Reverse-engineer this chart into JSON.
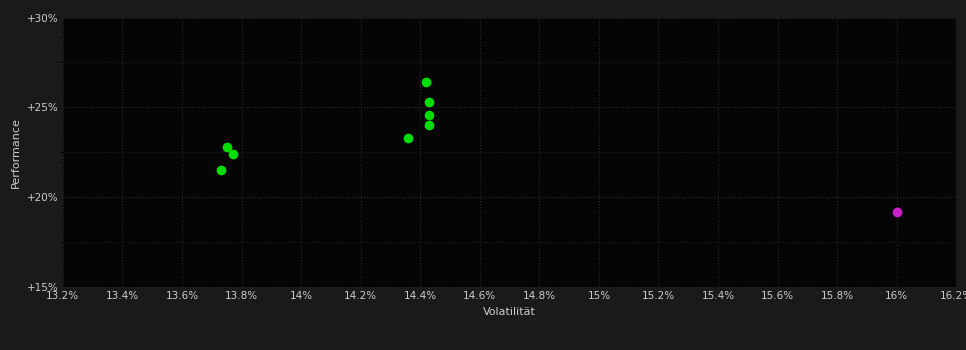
{
  "background_color": "#1a1a1a",
  "plot_bg_color": "#050505",
  "grid_color": "#2a2a2a",
  "grid_linestyle": ":",
  "xlabel": "Volatilität",
  "ylabel": "Performance",
  "xlabel_color": "#cccccc",
  "ylabel_color": "#cccccc",
  "tick_color": "#cccccc",
  "xlim": [
    13.2,
    16.2
  ],
  "ylim": [
    15.0,
    30.0
  ],
  "xticks": [
    13.2,
    13.4,
    13.6,
    13.8,
    14.0,
    14.2,
    14.4,
    14.6,
    14.8,
    15.0,
    15.2,
    15.4,
    15.6,
    15.8,
    16.0,
    16.2
  ],
  "yticks": [
    15.0,
    20.0,
    25.0,
    30.0
  ],
  "ytick_labels": [
    "+15%",
    "+20%",
    "+25%",
    "+30%"
  ],
  "green_points": [
    [
      13.75,
      22.8
    ],
    [
      13.77,
      22.4
    ],
    [
      13.73,
      21.5
    ],
    [
      14.42,
      26.4
    ],
    [
      14.43,
      25.3
    ],
    [
      14.43,
      24.6
    ],
    [
      14.43,
      24.0
    ],
    [
      14.36,
      23.3
    ]
  ],
  "magenta_points": [
    [
      16.0,
      19.2
    ]
  ],
  "green_color": "#00dd00",
  "magenta_color": "#cc22cc",
  "marker_size": 7
}
